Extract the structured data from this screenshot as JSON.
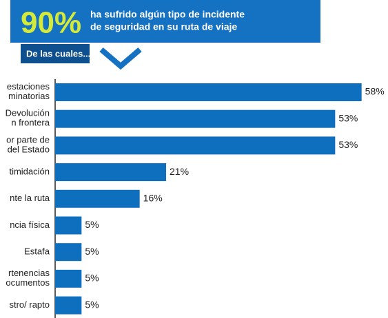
{
  "banner": {
    "figure": "90%",
    "lines": [
      "ha sufrido algún tipo de incidente",
      "de seguridad en su ruta de viaje"
    ],
    "sub": "De las cuales..."
  },
  "chart_data": {
    "type": "bar",
    "orientation": "horizontal",
    "color": "#0f6fbf",
    "categories": [
      "estaciones\nminatorias",
      "Devolución\nn frontera",
      "or parte de\ndel Estado",
      "timidación",
      "nte la ruta",
      "ncia física",
      "Estafa",
      "rtenencias\nocumentos",
      "stro/ rapto"
    ],
    "values": [
      58,
      53,
      53,
      21,
      16,
      5,
      5,
      5,
      5
    ],
    "value_labels": [
      "58%",
      "53%",
      "53%",
      "21%",
      "16%",
      "5%",
      "5%",
      "5%",
      "5%"
    ],
    "xlim": [
      0,
      60
    ]
  }
}
